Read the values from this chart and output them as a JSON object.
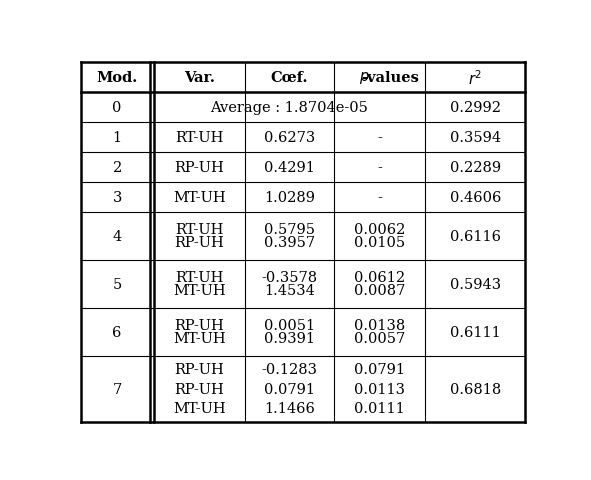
{
  "headers": [
    "Mod.",
    "Var.",
    "Cœf.",
    "p-values",
    "r²"
  ],
  "rows": [
    {
      "mod": "0",
      "var": [
        "Average : 1.8704e-05"
      ],
      "coef": [
        ""
      ],
      "pval": [
        ""
      ],
      "r2": "0.2992",
      "span": true
    },
    {
      "mod": "1",
      "var": [
        "RT-UH"
      ],
      "coef": [
        "0.6273"
      ],
      "pval": [
        "-"
      ],
      "r2": "0.3594",
      "span": false
    },
    {
      "mod": "2",
      "var": [
        "RP-UH"
      ],
      "coef": [
        "0.4291"
      ],
      "pval": [
        "-"
      ],
      "r2": "0.2289",
      "span": false
    },
    {
      "mod": "3",
      "var": [
        "MT-UH"
      ],
      "coef": [
        "1.0289"
      ],
      "pval": [
        "-"
      ],
      "r2": "0.4606",
      "span": false
    },
    {
      "mod": "4",
      "var": [
        "RT-UH",
        "RP-UH"
      ],
      "coef": [
        "0.5795",
        "0.3957"
      ],
      "pval": [
        "0.0062",
        "0.0105"
      ],
      "r2": "0.6116",
      "span": false
    },
    {
      "mod": "5",
      "var": [
        "RT-UH",
        "MT-UH"
      ],
      "coef": [
        "-0.3578",
        "1.4534"
      ],
      "pval": [
        "0.0612",
        "0.0087"
      ],
      "r2": "0.5943",
      "span": false
    },
    {
      "mod": "6",
      "var": [
        "RP-UH",
        "MT-UH"
      ],
      "coef": [
        "0.0051",
        "0.9391"
      ],
      "pval": [
        "0.0138",
        "0.0057"
      ],
      "r2": "0.6111",
      "span": false
    },
    {
      "mod": "7",
      "var": [
        "RP-UH",
        "RP-UH",
        "MT-UH"
      ],
      "coef": [
        "-0.1283",
        "0.0791",
        "1.1466"
      ],
      "pval": [
        "0.0791",
        "0.0113",
        "0.0111"
      ],
      "r2": "0.6818",
      "span": false
    }
  ],
  "bg_color": "#ffffff",
  "text_color": "#000000",
  "line_color": "#000000",
  "font_size": 10.5,
  "fig_width": 5.91,
  "fig_height": 4.81,
  "dpi": 100
}
